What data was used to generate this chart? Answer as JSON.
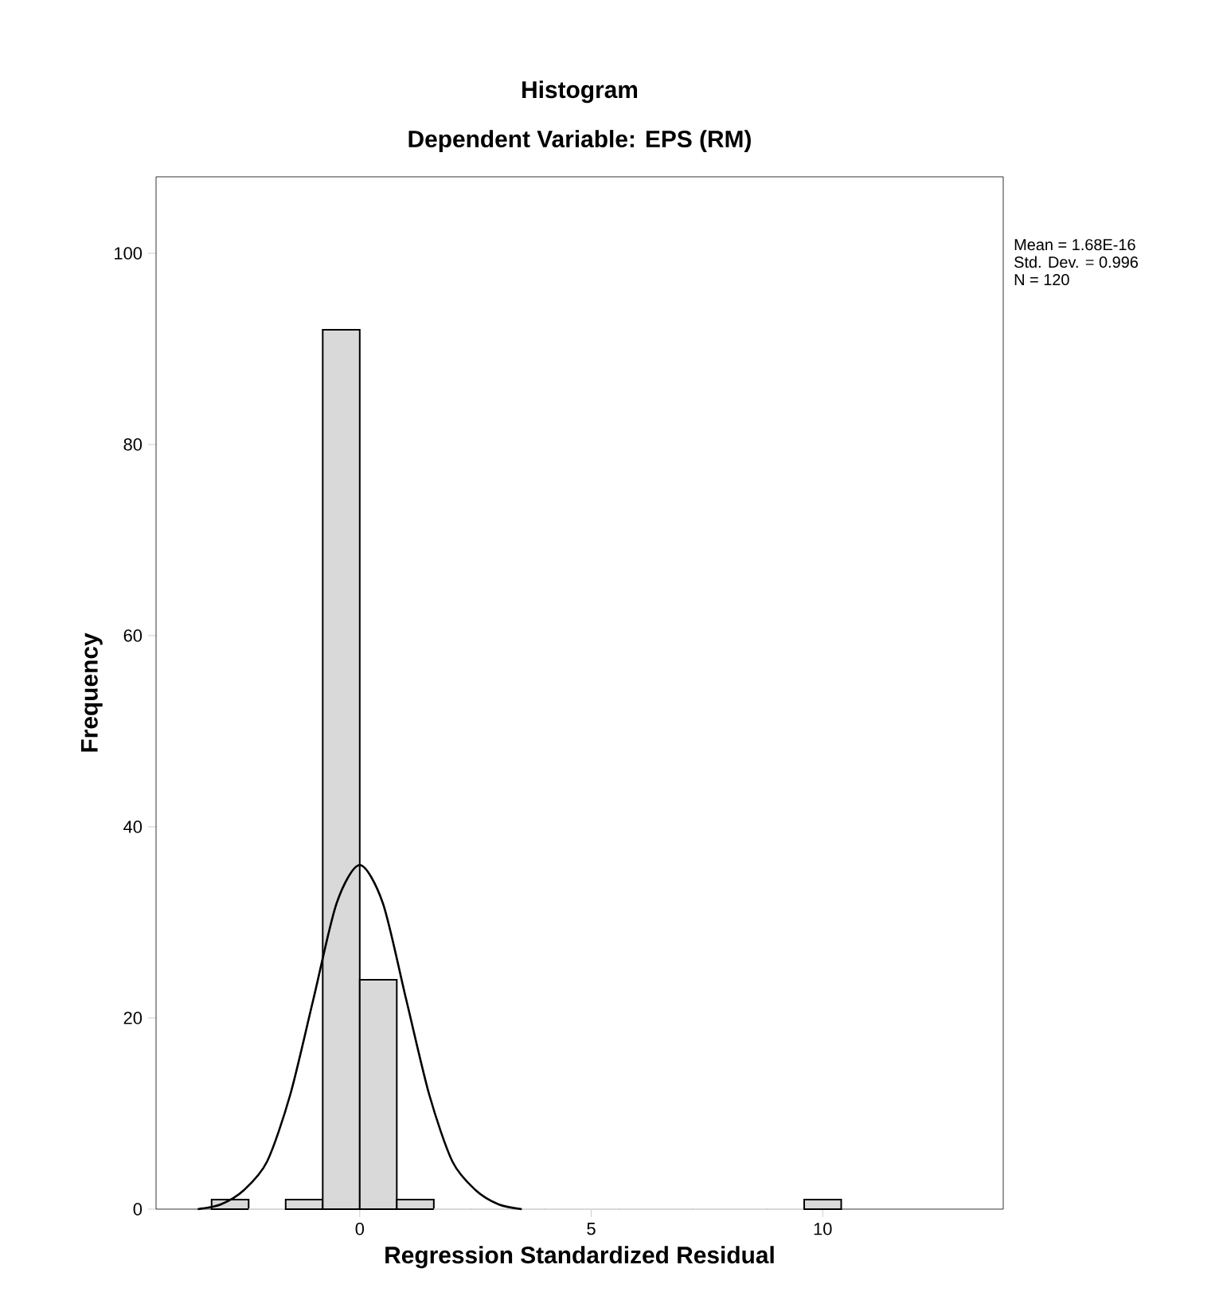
{
  "chart_data": {
    "type": "histogram",
    "title": "Histogram",
    "subtitle": "Dependent Variable: EPS (RM)",
    "xlabel": "Regression Standardized Residual",
    "ylabel": "Frequency",
    "bins": [
      -3.2,
      -2.4,
      -1.6,
      -0.8,
      0,
      0.8,
      1.6,
      2.4,
      3.2,
      4.0,
      4.8,
      5.6,
      6.4,
      7.2,
      8.0,
      8.8,
      9.6,
      10.4
    ],
    "values": [
      1,
      0,
      1,
      92,
      24,
      1,
      0,
      0,
      0,
      0,
      0,
      0,
      0,
      0,
      0,
      0,
      1
    ],
    "color": "#d9d9d9",
    "series": [
      {
        "type": "line",
        "color": "#000000",
        "x": [
          -3.5,
          -3,
          -2.5,
          -2,
          -1.5,
          -1,
          -0.5,
          0,
          0.5,
          1,
          1.5,
          2,
          2.5,
          3,
          3.5
        ],
        "values": [
          0,
          0.5,
          2,
          5,
          12,
          22,
          32,
          36,
          32,
          22,
          12,
          5,
          2,
          0.5,
          0
        ]
      }
    ],
    "xlim": [
      -4.4,
      13.9
    ],
    "ylim": [
      0,
      108
    ],
    "xticks": [
      0,
      5,
      10
    ],
    "yticks": [
      0,
      20,
      40,
      60,
      80,
      100
    ],
    "grid": false,
    "marker": "none",
    "line_style": "solid",
    "annotations": [
      "Mean = 1.68E-16",
      "Std. Dev. = 0.996",
      "N = 120"
    ]
  }
}
